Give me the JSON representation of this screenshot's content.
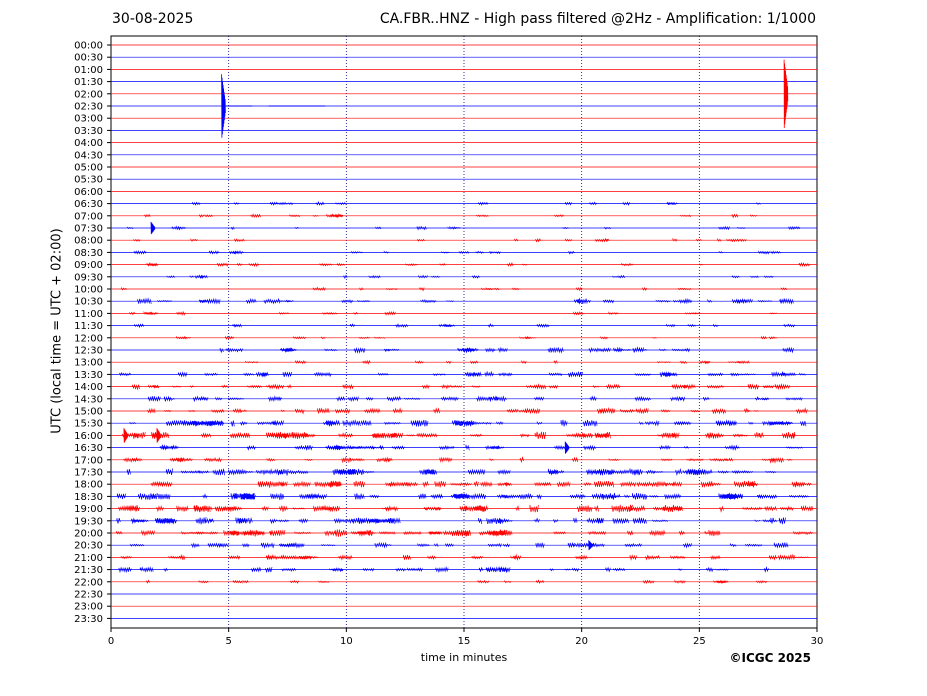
{
  "header": {
    "date": "30-08-2025",
    "title": "CA.FBR..HNZ - High pass filtered @2Hz - Amplification: 1/1000"
  },
  "footer": {
    "xlabel": "time in minutes",
    "copyright": "©ICGC 2025"
  },
  "chart_data": {
    "type": "line",
    "title": "CA.FBR..HNZ - High pass filtered @2Hz - Amplification: 1/1000",
    "xlabel": "time in minutes",
    "ylabel": "UTC (local time = UTC + 02:00)",
    "xlim": [
      0,
      30
    ],
    "x_ticks": [
      0,
      5,
      10,
      15,
      20,
      25,
      30
    ],
    "vertical_gridlines_at": [
      5,
      10,
      15,
      20,
      25
    ],
    "rows": [
      "00:00",
      "00:30",
      "01:00",
      "01:30",
      "02:00",
      "02:30",
      "03:00",
      "03:30",
      "04:00",
      "04:30",
      "05:00",
      "05:30",
      "06:00",
      "06:30",
      "07:00",
      "07:30",
      "08:00",
      "08:30",
      "09:00",
      "09:30",
      "10:00",
      "10:30",
      "11:00",
      "11:30",
      "12:00",
      "12:30",
      "13:00",
      "13:30",
      "14:00",
      "14:30",
      "15:00",
      "15:30",
      "16:00",
      "16:30",
      "17:00",
      "17:30",
      "18:00",
      "18:30",
      "19:00",
      "19:30",
      "20:00",
      "20:30",
      "21:00",
      "21:30",
      "22:00",
      "22:30",
      "23:00",
      "23:30"
    ],
    "row_colors": [
      "#ff0000",
      "#0000ff"
    ],
    "colors": {
      "red": "#ff0000",
      "blue": "#0000ff",
      "grid": "#000080"
    },
    "activity_levels": [
      0,
      0,
      0,
      0,
      0,
      0,
      0,
      0,
      0,
      0,
      0,
      0,
      0,
      1,
      1,
      1,
      1,
      1,
      1,
      1,
      1,
      2,
      1,
      1,
      1,
      2,
      1,
      2,
      2,
      2,
      2,
      3,
      3,
      2,
      2,
      3,
      3,
      3,
      3,
      3,
      3,
      2,
      2,
      2,
      1,
      0,
      0,
      0
    ],
    "data_end_row": "22:00",
    "spike_events": [
      {
        "row": "02:30",
        "minute": 4.7,
        "amplitude": 2.6
      },
      {
        "row": "02:00",
        "minute": 28.6,
        "amplitude": 2.8
      },
      {
        "row": "07:30",
        "minute": 1.7,
        "amplitude": 0.5
      },
      {
        "row": "16:00",
        "minute": 0.55,
        "amplitude": 0.6
      },
      {
        "row": "16:00",
        "minute": 1.95,
        "amplitude": 0.6
      },
      {
        "row": "16:30",
        "minute": 19.3,
        "amplitude": 0.5
      },
      {
        "row": "20:30",
        "minute": 20.3,
        "amplitude": 0.4
      }
    ]
  }
}
